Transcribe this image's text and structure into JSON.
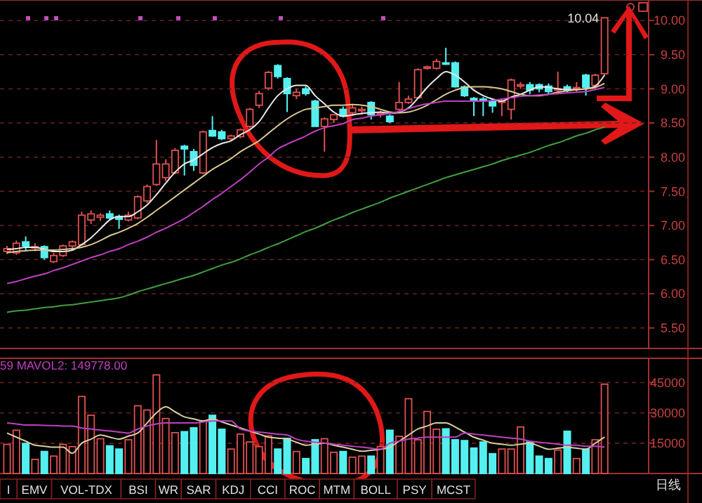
{
  "chart_data": [
    {
      "type": "candlestick",
      "categories": [
        null,
        null,
        null,
        null,
        null,
        null,
        null,
        null,
        null,
        null,
        null,
        null,
        null,
        null,
        null,
        null,
        null,
        null,
        null,
        null,
        null,
        null,
        null,
        null,
        null,
        null,
        null,
        null,
        null,
        null,
        null,
        null,
        null,
        null,
        null,
        null,
        null,
        null,
        null,
        null,
        null,
        null,
        null,
        null,
        null,
        null,
        null,
        null,
        null,
        null,
        null,
        null,
        null,
        null,
        null,
        null,
        null,
        null,
        null,
        null,
        null,
        null,
        null,
        null,
        null
      ],
      "ohlc": [
        [
          6.62,
          6.7,
          6.58,
          6.66
        ],
        [
          6.6,
          6.78,
          6.57,
          6.74
        ],
        [
          6.76,
          6.84,
          6.62,
          6.7
        ],
        [
          6.68,
          6.74,
          6.62,
          6.69
        ],
        [
          6.69,
          6.71,
          6.5,
          6.53
        ],
        [
          6.47,
          6.6,
          6.45,
          6.56
        ],
        [
          6.56,
          6.72,
          6.54,
          6.7
        ],
        [
          6.7,
          6.78,
          6.66,
          6.76
        ],
        [
          6.72,
          7.2,
          6.7,
          7.15
        ],
        [
          7.08,
          7.22,
          7.02,
          7.17
        ],
        [
          7.12,
          7.18,
          7.07,
          7.15
        ],
        [
          7.17,
          7.22,
          7.08,
          7.11
        ],
        [
          7.13,
          7.16,
          6.95,
          7.09
        ],
        [
          7.08,
          7.2,
          7.06,
          7.15
        ],
        [
          7.11,
          7.44,
          7.09,
          7.42
        ],
        [
          7.36,
          7.6,
          7.33,
          7.57
        ],
        [
          7.6,
          8.25,
          7.58,
          7.9
        ],
        [
          7.7,
          7.97,
          7.65,
          7.9
        ],
        [
          7.77,
          8.13,
          7.75,
          8.1
        ],
        [
          8.16,
          8.18,
          7.73,
          8.12
        ],
        [
          8.08,
          8.12,
          7.8,
          7.88
        ],
        [
          7.77,
          8.39,
          7.75,
          8.37
        ],
        [
          8.39,
          8.6,
          8.3,
          8.31
        ],
        [
          8.37,
          8.4,
          8.25,
          8.27
        ],
        [
          8.27,
          8.33,
          8.24,
          8.31
        ],
        [
          8.3,
          8.42,
          8.28,
          8.4
        ],
        [
          8.45,
          8.72,
          8.42,
          8.7
        ],
        [
          8.76,
          8.97,
          8.72,
          8.93
        ],
        [
          9.01,
          9.26,
          8.98,
          9.24
        ],
        [
          9.34,
          9.36,
          9.15,
          9.18
        ],
        [
          9.15,
          9.17,
          8.66,
          8.93
        ],
        [
          8.9,
          9.0,
          8.85,
          8.95
        ],
        [
          9.0,
          9.04,
          8.9,
          8.93
        ],
        [
          8.82,
          8.84,
          8.45,
          8.45
        ],
        [
          8.45,
          8.58,
          8.08,
          8.56
        ],
        [
          8.55,
          8.63,
          8.5,
          8.62
        ],
        [
          8.7,
          8.74,
          8.58,
          8.6
        ],
        [
          8.65,
          8.78,
          8.6,
          8.72
        ],
        [
          8.7,
          8.74,
          8.62,
          8.7
        ],
        [
          8.8,
          8.82,
          8.55,
          8.62
        ],
        [
          8.63,
          8.68,
          8.58,
          8.64
        ],
        [
          8.6,
          8.62,
          8.5,
          8.52
        ],
        [
          8.7,
          9.1,
          8.68,
          8.8
        ],
        [
          8.8,
          8.9,
          8.78,
          8.85
        ],
        [
          8.87,
          9.3,
          8.85,
          9.28
        ],
        [
          9.3,
          9.34,
          9.28,
          9.32
        ],
        [
          9.3,
          9.44,
          9.28,
          9.4
        ],
        [
          9.38,
          9.6,
          9.35,
          9.37
        ],
        [
          9.38,
          9.4,
          9.02,
          9.03
        ],
        [
          9.03,
          9.05,
          8.88,
          8.9
        ],
        [
          8.86,
          8.88,
          8.6,
          8.84
        ],
        [
          8.85,
          8.88,
          8.6,
          8.84
        ],
        [
          8.82,
          8.86,
          8.65,
          8.75
        ],
        [
          8.8,
          8.86,
          8.6,
          8.82
        ],
        [
          8.7,
          9.15,
          8.55,
          9.13
        ],
        [
          9.05,
          9.1,
          9.0,
          9.06
        ],
        [
          9.06,
          9.1,
          8.92,
          8.98
        ],
        [
          9.06,
          9.08,
          8.95,
          9.0
        ],
        [
          9.04,
          9.08,
          8.92,
          8.96
        ],
        [
          8.98,
          9.25,
          8.92,
          9.0
        ],
        [
          9.03,
          9.06,
          8.95,
          8.98
        ],
        [
          9.0,
          9.1,
          8.95,
          9.02
        ],
        [
          9.2,
          9.22,
          8.9,
          9.02
        ],
        [
          9.05,
          9.22,
          9.0,
          9.2
        ],
        [
          9.22,
          10.04,
          9.2,
          10.04
        ]
      ],
      "colors": [
        "#e05050",
        "#e05050",
        "#54f0f0",
        "#e05050",
        "#54f0f0",
        "#e05050",
        "#e05050",
        "#e05050",
        "#e05050",
        "#e05050",
        "#e05050",
        "#54f0f0",
        "#54f0f0",
        "#e05050",
        "#e05050",
        "#e05050",
        "#e05050",
        "#e05050",
        "#e05050",
        "#54f0f0",
        "#54f0f0",
        "#e05050",
        "#54f0f0",
        "#54f0f0",
        "#e05050",
        "#e05050",
        "#e05050",
        "#e05050",
        "#e05050",
        "#54f0f0",
        "#54f0f0",
        "#e05050",
        "#54f0f0",
        "#54f0f0",
        "#e05050",
        "#e05050",
        "#54f0f0",
        "#e05050",
        "#e05050",
        "#54f0f0",
        "#e05050",
        "#54f0f0",
        "#e05050",
        "#e05050",
        "#e05050",
        "#e05050",
        "#e05050",
        "#54f0f0",
        "#54f0f0",
        "#54f0f0",
        "#54f0f0",
        "#54f0f0",
        "#54f0f0",
        "#e05050",
        "#e05050",
        "#e05050",
        "#54f0f0",
        "#54f0f0",
        "#54f0f0",
        "#e05050",
        "#54f0f0",
        "#e05050",
        "#54f0f0",
        "#e05050",
        "#e05050"
      ],
      "series": [
        {
          "type": "line",
          "color": "#e8e8e8",
          "values": [
            6.65,
            6.66,
            6.68,
            6.68,
            6.65,
            6.62,
            6.62,
            6.64,
            6.72,
            6.82,
            6.95,
            7.08,
            7.13,
            7.13,
            7.2,
            7.3,
            7.45,
            7.62,
            7.78,
            7.9,
            7.96,
            8.05,
            8.14,
            8.2,
            8.24,
            8.33,
            8.4,
            8.52,
            8.72,
            8.9,
            9.0,
            9.05,
            9.05,
            8.9,
            8.78,
            8.66,
            8.6,
            8.62,
            8.64,
            8.65,
            8.66,
            8.64,
            8.66,
            8.72,
            8.86,
            9.02,
            9.15,
            9.25,
            9.2,
            9.1,
            8.98,
            8.9,
            8.85,
            8.82,
            8.88,
            8.92,
            8.98,
            9.03,
            9.02,
            9.0,
            8.99,
            8.99,
            9.0,
            9.04,
            9.2
          ]
        },
        {
          "type": "line",
          "color": "#d8c890",
          "values": [
            6.6,
            6.62,
            6.63,
            6.64,
            6.64,
            6.64,
            6.65,
            6.66,
            6.68,
            6.72,
            6.78,
            6.85,
            6.9,
            6.96,
            7.03,
            7.12,
            7.22,
            7.32,
            7.42,
            7.52,
            7.62,
            7.72,
            7.82,
            7.9,
            7.98,
            8.08,
            8.16,
            8.24,
            8.35,
            8.46,
            8.56,
            8.64,
            8.7,
            8.72,
            8.74,
            8.76,
            8.76,
            8.77,
            8.76,
            8.74,
            8.7,
            8.66,
            8.65,
            8.66,
            8.7,
            8.76,
            8.84,
            8.92,
            8.98,
            9.02,
            9.03,
            9.03,
            9.02,
            9.0,
            8.96,
            8.92,
            8.9,
            8.9,
            8.92,
            8.95,
            8.97,
            8.99,
            9.0,
            9.02,
            9.08
          ]
        },
        {
          "type": "line",
          "color": "#c040c0",
          "values": [
            6.15,
            6.18,
            6.22,
            6.26,
            6.29,
            6.34,
            6.38,
            6.43,
            6.48,
            6.53,
            6.57,
            6.62,
            6.66,
            6.72,
            6.77,
            6.83,
            6.9,
            6.96,
            7.03,
            7.1,
            7.19,
            7.28,
            7.38,
            7.47,
            7.57,
            7.67,
            7.78,
            7.9,
            8.0,
            8.12,
            8.19,
            8.25,
            8.31,
            8.38,
            8.43,
            8.46,
            8.49,
            8.55,
            8.57,
            8.6,
            8.62,
            8.64,
            8.67,
            8.71,
            8.75,
            8.78,
            8.8,
            8.82,
            8.82,
            8.82,
            8.82,
            8.82,
            8.83,
            8.85,
            8.87,
            8.89,
            8.9,
            8.91,
            8.92,
            8.93,
            8.94,
            8.95,
            8.96,
            8.99,
            9.02
          ]
        },
        {
          "type": "line",
          "color": "#40a040",
          "values": [
            5.73,
            5.75,
            5.76,
            5.78,
            5.8,
            5.81,
            5.83,
            5.84,
            5.86,
            5.88,
            5.9,
            5.92,
            5.94,
            5.98,
            6.03,
            6.07,
            6.11,
            6.15,
            6.19,
            6.23,
            6.27,
            6.32,
            6.37,
            6.42,
            6.46,
            6.51,
            6.57,
            6.62,
            6.68,
            6.73,
            6.79,
            6.85,
            6.91,
            6.96,
            7.02,
            7.08,
            7.13,
            7.19,
            7.24,
            7.29,
            7.34,
            7.4,
            7.45,
            7.5,
            7.55,
            7.6,
            7.65,
            7.7,
            7.74,
            7.78,
            7.82,
            7.86,
            7.9,
            7.95,
            7.99,
            8.03,
            8.07,
            8.12,
            8.17,
            8.21,
            8.26,
            8.31,
            8.35,
            8.4,
            8.44
          ]
        }
      ],
      "ylim": [
        5.2,
        10.3
      ],
      "yticks": [
        {
          "value": 5.5,
          "label": "5.50"
        },
        {
          "value": 6,
          "label": "6.00"
        },
        {
          "value": 6.5,
          "label": "6.50"
        },
        {
          "value": 7,
          "label": "7.00"
        },
        {
          "value": 7.5,
          "label": "7.50"
        },
        {
          "value": 8,
          "label": "8.00"
        },
        {
          "value": 8.5,
          "label": "8.50"
        },
        {
          "value": 9,
          "label": "9.00"
        },
        {
          "value": 9.5,
          "label": "9.50"
        },
        {
          "value": 10,
          "label": "10.00"
        }
      ],
      "grid": "y",
      "tick_labels": "y",
      "annotations": [
        "10.04"
      ]
    },
    {
      "type": "bar",
      "categories": [
        null,
        null,
        null,
        null,
        null,
        null,
        null,
        null,
        null,
        null,
        null,
        null,
        null,
        null,
        null,
        null,
        null,
        null,
        null,
        null,
        null,
        null,
        null,
        null,
        null,
        null,
        null,
        null,
        null,
        null,
        null,
        null,
        null,
        null,
        null,
        null,
        null,
        null,
        null,
        null,
        null,
        null,
        null,
        null,
        null,
        null,
        null,
        null,
        null,
        null,
        null,
        null,
        null,
        null,
        null,
        null,
        null,
        null,
        null,
        null,
        null,
        null,
        null,
        null,
        null
      ],
      "values": [
        14400,
        21400,
        14900,
        7000,
        10900,
        8600,
        14400,
        13300,
        38100,
        28800,
        17200,
        13700,
        12100,
        16700,
        33500,
        31400,
        48800,
        27200,
        20200,
        20700,
        22600,
        26000,
        28800,
        21900,
        12100,
        19500,
        15600,
        13300,
        18600,
        12100,
        17400,
        10900,
        7400,
        16700,
        17200,
        10500,
        10900,
        8100,
        8600,
        8600,
        13300,
        21400,
        18400,
        37000,
        16700,
        30700,
        21900,
        22100,
        16700,
        16300,
        12600,
        15600,
        9800,
        12100,
        12100,
        23000,
        15600,
        8600,
        7400,
        11600,
        20900,
        7400,
        12100,
        16700,
        44200
      ],
      "colors": [
        "#e05050",
        "#e05050",
        "#54f0f0",
        "#e05050",
        "#54f0f0",
        "#e05050",
        "#e05050",
        "#e05050",
        "#e05050",
        "#e05050",
        "#e05050",
        "#54f0f0",
        "#54f0f0",
        "#e05050",
        "#e05050",
        "#e05050",
        "#e05050",
        "#e05050",
        "#e05050",
        "#54f0f0",
        "#54f0f0",
        "#e05050",
        "#54f0f0",
        "#54f0f0",
        "#e05050",
        "#e05050",
        "#e05050",
        "#e05050",
        "#e05050",
        "#54f0f0",
        "#54f0f0",
        "#e05050",
        "#54f0f0",
        "#54f0f0",
        "#e05050",
        "#e05050",
        "#54f0f0",
        "#e05050",
        "#e05050",
        "#54f0f0",
        "#e05050",
        "#54f0f0",
        "#e05050",
        "#e05050",
        "#e05050",
        "#e05050",
        "#e05050",
        "#54f0f0",
        "#54f0f0",
        "#54f0f0",
        "#54f0f0",
        "#54f0f0",
        "#54f0f0",
        "#e05050",
        "#e05050",
        "#e05050",
        "#54f0f0",
        "#54f0f0",
        "#54f0f0",
        "#e05050",
        "#54f0f0",
        "#e05050",
        "#54f0f0",
        "#e05050",
        "#e05050"
      ],
      "series": [
        {
          "type": "line",
          "color": "#d8d0a0",
          "values": [
            20000,
            18000,
            16000,
            14000,
            13500,
            13000,
            13000,
            10000,
            15000,
            17000,
            19000,
            18000,
            17000,
            18500,
            20000,
            25000,
            30000,
            33000,
            30500,
            28000,
            27000,
            26000,
            27000,
            25500,
            24000,
            22500,
            21000,
            19500,
            18000,
            17500,
            17000,
            15500,
            14000,
            14500,
            15000,
            14000,
            13000,
            12000,
            11000,
            11500,
            12000,
            13000,
            16000,
            19000,
            22000,
            23500,
            25000,
            25000,
            23000,
            20500,
            18000,
            16500,
            15000,
            14500,
            14000,
            14500,
            15000,
            13500,
            12000,
            12500,
            13000,
            12500,
            12000,
            15000,
            18000
          ]
        },
        {
          "type": "line",
          "color": "#c040c0",
          "values": [
            25000,
            24500,
            24000,
            24000,
            23800,
            23700,
            23500,
            23500,
            22500,
            22000,
            21500,
            21000,
            20500,
            20000,
            22000,
            23500,
            24500,
            25000,
            25000,
            25000,
            25000,
            25500,
            26000,
            26000,
            26000,
            22000,
            21000,
            20500,
            20000,
            19500,
            19000,
            17000,
            16000,
            15500,
            15000,
            14500,
            14000,
            13500,
            13000,
            12500,
            12000,
            15000,
            16000,
            17000,
            17500,
            18000,
            18000,
            18000,
            18000,
            20000,
            19500,
            19000,
            18500,
            18000,
            17500,
            17000,
            16000,
            15500,
            15000,
            14500,
            14000,
            14000,
            13500,
            13500,
            13000
          ]
        }
      ],
      "ylim": [
        0,
        57000
      ],
      "yticks": [
        15000,
        30000,
        45000
      ],
      "grid": "y",
      "tick_labels": "y",
      "annotations": [
        "59 MAVOL2: 149778.00",
        "I",
        "EMV",
        "VOL-TDX",
        "BSI",
        "WR",
        "SAR",
        "KDJ",
        "CCI",
        "ROC",
        "MTM",
        "BOLL",
        "PSY",
        "MCST",
        "日线"
      ]
    }
  ]
}
